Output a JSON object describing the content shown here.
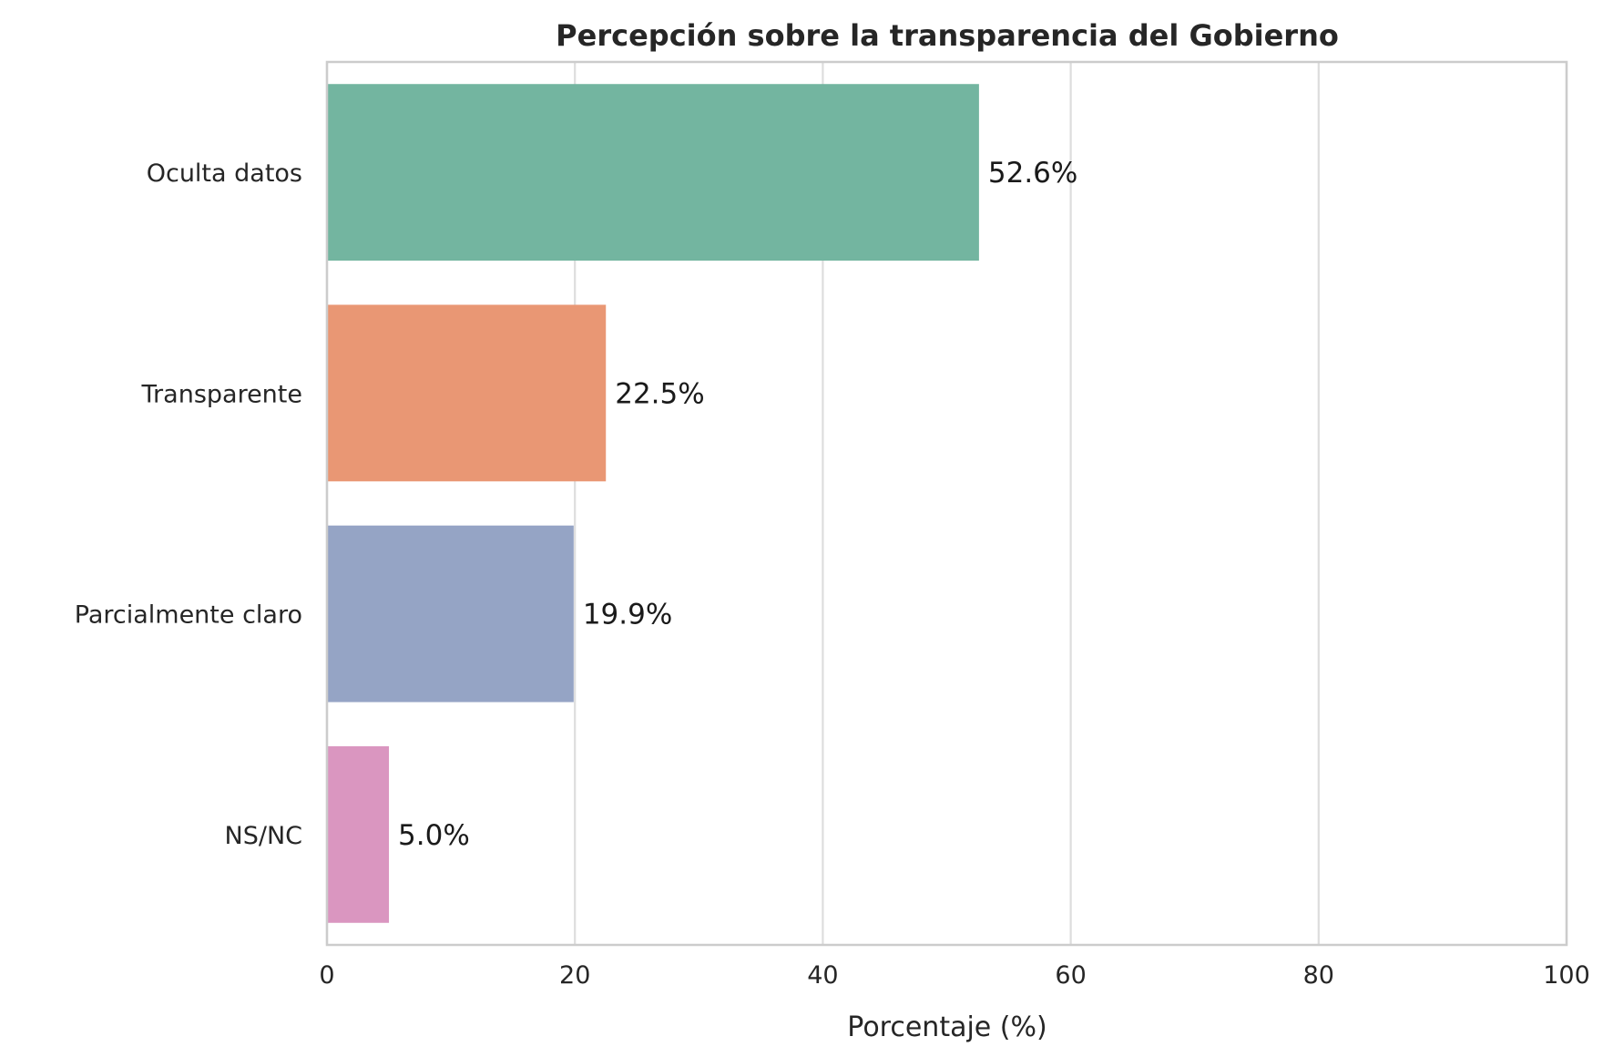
{
  "chart_data": {
    "type": "bar",
    "orientation": "horizontal",
    "title": "Percepción sobre la transparencia del Gobierno",
    "xlabel": "Porcentaje (%)",
    "ylabel": "",
    "xlim": [
      0,
      100
    ],
    "xticks": [
      0,
      20,
      40,
      60,
      80,
      100
    ],
    "grid": "vertical",
    "legend": "none",
    "categories": [
      "Oculta datos",
      "Transparente",
      "Parcialmente claro",
      "NS/NC"
    ],
    "values": [
      52.6,
      22.5,
      19.9,
      5.0
    ],
    "value_labels": [
      "52.6%",
      "22.5%",
      "19.9%",
      "5.0%"
    ],
    "colors": [
      "#73b5a0",
      "#e99774",
      "#95a4c5",
      "#da96c0"
    ]
  }
}
